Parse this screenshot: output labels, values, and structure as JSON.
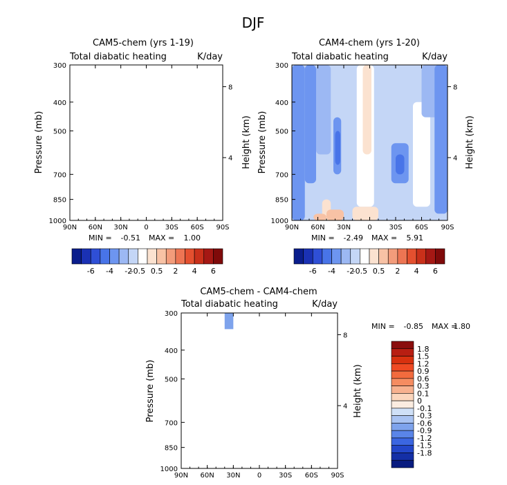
{
  "figure_title": "DJF",
  "chart_data": [
    {
      "type": "heatmap",
      "id": "cam5",
      "title": "CAM5-chem (yrs 1-19)",
      "subtitle_left": "Total diabatic heating",
      "subtitle_right": "K/day",
      "ylabel": "Pressure (mb)",
      "ylabel_right": "Height (km)",
      "xlabels": [
        "90N",
        "60N",
        "30N",
        "0",
        "30S",
        "60S",
        "90S"
      ],
      "yticks": [
        300,
        400,
        500,
        700,
        850,
        1000
      ],
      "height_ticks": [
        "8",
        "4"
      ],
      "min_label": "MIN =",
      "min_value": "-0.51",
      "max_label": "MAX =",
      "max_value": "1.00",
      "cells": [
        {
          "lat": [
            40,
            30
          ],
          "p": [
            300,
            340
          ],
          "level": 7
        }
      ]
    },
    {
      "type": "heatmap",
      "id": "cam4",
      "title": "CAM4-chem (yrs 1-20)",
      "subtitle_left": "Total diabatic heating",
      "subtitle_right": "K/day",
      "ylabel": "Pressure (mb)",
      "ylabel_right": "Height (km)",
      "xlabels": [
        "90N",
        "60N",
        "30N",
        "0",
        "30S",
        "60S",
        "90S"
      ],
      "yticks": [
        300,
        400,
        500,
        700,
        850,
        1000
      ],
      "height_ticks": [
        "8",
        "4"
      ],
      "min_label": "MIN =",
      "min_value": "-2.49",
      "max_label": "MAX =",
      "max_value": "5.91",
      "background_level": 6,
      "bands": [
        {
          "lat": [
            90,
            75
          ],
          "p": [
            300,
            1000
          ],
          "level": 4
        },
        {
          "lat": [
            75,
            62
          ],
          "p": [
            300,
            750
          ],
          "level": 4
        },
        {
          "lat": [
            62,
            45
          ],
          "p": [
            300,
            600
          ],
          "level": 5
        },
        {
          "lat": [
            55,
            45
          ],
          "p": [
            850,
            1000
          ],
          "level": 8
        },
        {
          "lat": [
            50,
            30
          ],
          "p": [
            920,
            1000
          ],
          "level": 9
        },
        {
          "lat": [
            65,
            50
          ],
          "p": [
            950,
            1000
          ],
          "level": 9
        },
        {
          "lat": [
            42,
            33
          ],
          "p": [
            450,
            700
          ],
          "level": 4
        },
        {
          "lat": [
            40,
            34
          ],
          "p": [
            500,
            650
          ],
          "level": 3
        },
        {
          "lat": [
            15,
            -5
          ],
          "p": [
            300,
            900
          ],
          "level": 7
        },
        {
          "lat": [
            8,
            -2
          ],
          "p": [
            300,
            600
          ],
          "level": 8
        },
        {
          "lat": [
            20,
            -10
          ],
          "p": [
            900,
            1000
          ],
          "level": 8
        },
        {
          "lat": [
            -25,
            -45
          ],
          "p": [
            550,
            750
          ],
          "level": 4
        },
        {
          "lat": [
            -30,
            -40
          ],
          "p": [
            600,
            700
          ],
          "level": 3
        },
        {
          "lat": [
            -50,
            -70
          ],
          "p": [
            400,
            900
          ],
          "level": 7
        },
        {
          "lat": [
            -60,
            -85
          ],
          "p": [
            300,
            450
          ],
          "level": 5
        },
        {
          "lat": [
            -75,
            -90
          ],
          "p": [
            300,
            950
          ],
          "level": 4
        },
        {
          "lat": [
            -70,
            -90
          ],
          "p": [
            950,
            1000
          ],
          "level": 6
        }
      ]
    },
    {
      "type": "heatmap",
      "id": "diff",
      "title": "CAM5-chem - CAM4-chem",
      "subtitle_left": "Total diabatic heating",
      "subtitle_right": "K/day",
      "ylabel": "Pressure (mb)",
      "ylabel_right": "Height (km)",
      "xlabels": [
        "90N",
        "60N",
        "30N",
        "0",
        "30S",
        "60S",
        "90S"
      ],
      "yticks": [
        300,
        400,
        500,
        700,
        850,
        1000
      ],
      "height_ticks": [
        "8",
        "4"
      ],
      "min_label": "MIN =",
      "min_value": "-0.85",
      "max_label": "MAX =",
      "max_value": "1.80",
      "cells": [
        {
          "lat": [
            40,
            30
          ],
          "p": [
            300,
            340
          ],
          "level": 11
        }
      ]
    }
  ],
  "colorbar_shared": {
    "labels": [
      "-6",
      "-4",
      "-2",
      "-0.5",
      "0.5",
      "2",
      "4",
      "6"
    ],
    "colors": [
      "#0a1d8c",
      "#1a31b4",
      "#2f4fd6",
      "#4874e8",
      "#6d95f0",
      "#9cb8f3",
      "#c4d6f6",
      "#ffffff",
      "#fbe2d0",
      "#f8c2a5",
      "#f39c7b",
      "#ed7553",
      "#e4502f",
      "#c9301a",
      "#a51814",
      "#7f0a0a"
    ]
  },
  "colorbar_diff": {
    "labels": [
      "1.8",
      "1.5",
      "1.2",
      "0.9",
      "0.6",
      "0.3",
      "0.1",
      "0",
      "-0.1",
      "-0.3",
      "-0.6",
      "-0.9",
      "-1.2",
      "-1.5",
      "-1.8"
    ],
    "colors": [
      "#8a0d0d",
      "#b81e12",
      "#d8310f",
      "#ef4a23",
      "#f26b3e",
      "#f58c61",
      "#f7b18f",
      "#fbd6bd",
      "#fbece0",
      "#cfe0f7",
      "#a9c3f2",
      "#7ea3ec",
      "#5a85e8",
      "#3b66e1",
      "#2346c9",
      "#142fa6",
      "#091c80"
    ]
  }
}
